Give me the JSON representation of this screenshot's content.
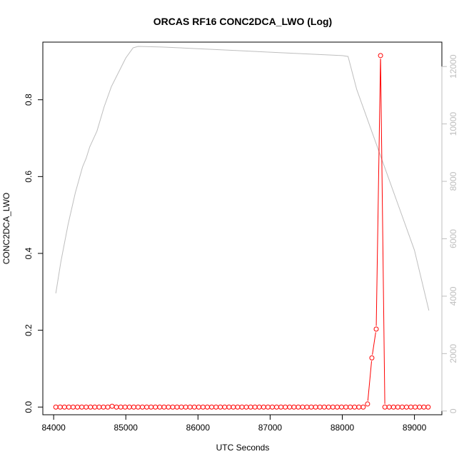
{
  "chart_data": {
    "type": "line",
    "title": "ORCAS RF16 CONC2DCA_LWO (Log)",
    "xlabel": "UTC Seconds",
    "ylabel": "CONC2DCA_LWO",
    "xlim": [
      83850,
      89380
    ],
    "ylim": [
      -0.02,
      0.95
    ],
    "y2lim": [
      -130,
      12850
    ],
    "x_ticks": [
      84000,
      85000,
      86000,
      87000,
      88000,
      89000
    ],
    "y_ticks": [
      0.0,
      0.2,
      0.4,
      0.6,
      0.8
    ],
    "y_tick_labels": [
      "0.0",
      "0.2",
      "0.4",
      "0.6",
      "0.8"
    ],
    "y2_ticks": [
      0,
      2000,
      4000,
      6000,
      8000,
      10000,
      12000
    ],
    "colors": {
      "primary": "#ff0000",
      "secondary": "#bebebe"
    },
    "grid": false,
    "series": [
      {
        "axis": "left",
        "style": "line+points",
        "x": [
          84030,
          84090,
          84150,
          84210,
          84270,
          84330,
          84390,
          84450,
          84510,
          84570,
          84630,
          84690,
          84750,
          84810,
          84870,
          84930,
          84990,
          85050,
          85110,
          85170,
          85230,
          85290,
          85350,
          85410,
          85470,
          85530,
          85590,
          85650,
          85710,
          85770,
          85830,
          85890,
          85950,
          86010,
          86070,
          86130,
          86190,
          86250,
          86310,
          86370,
          86430,
          86490,
          86550,
          86610,
          86670,
          86730,
          86790,
          86850,
          86910,
          86970,
          87030,
          87090,
          87150,
          87210,
          87270,
          87330,
          87390,
          87450,
          87510,
          87570,
          87630,
          87690,
          87750,
          87810,
          87870,
          87930,
          87990,
          88050,
          88110,
          88170,
          88230,
          88290,
          88350,
          88410,
          88470,
          88530,
          88590,
          88650,
          88710,
          88770,
          88830,
          88890,
          88950,
          89010,
          89070,
          89130,
          89190
        ],
        "y": [
          0,
          0,
          0,
          0,
          0,
          0,
          0,
          0,
          0,
          0,
          0,
          0,
          0,
          0.002,
          0,
          0,
          0,
          0,
          0,
          0,
          0,
          0,
          0,
          0,
          0,
          0,
          0,
          0,
          0,
          0,
          0,
          0,
          0,
          0,
          0,
          0,
          0,
          0,
          0,
          0,
          0,
          0,
          0,
          0,
          0,
          0,
          0,
          0,
          0,
          0,
          0,
          0,
          0,
          0,
          0,
          0,
          0,
          0,
          0,
          0,
          0,
          0,
          0,
          0,
          0,
          0,
          0,
          0,
          0,
          0,
          0,
          0,
          0.008,
          0.128,
          0.203,
          0.915,
          0,
          0,
          0,
          0,
          0,
          0,
          0,
          0,
          0,
          0,
          0
        ]
      },
      {
        "axis": "right",
        "style": "line",
        "x": [
          84030,
          84100,
          84200,
          84300,
          84400,
          84450,
          84500,
          84600,
          84700,
          84800,
          84900,
          85000,
          85100,
          85170,
          85500,
          86000,
          86500,
          87000,
          87500,
          88000,
          88080,
          88200,
          88400,
          88600,
          88800,
          89000,
          89200
        ],
        "y": [
          4100,
          5200,
          6500,
          7600,
          8500,
          8800,
          9200,
          9750,
          10600,
          11300,
          11800,
          12300,
          12650,
          12700,
          12680,
          12620,
          12560,
          12500,
          12440,
          12380,
          12350,
          11200,
          9800,
          8400,
          7000,
          5600,
          3500
        ]
      }
    ]
  }
}
